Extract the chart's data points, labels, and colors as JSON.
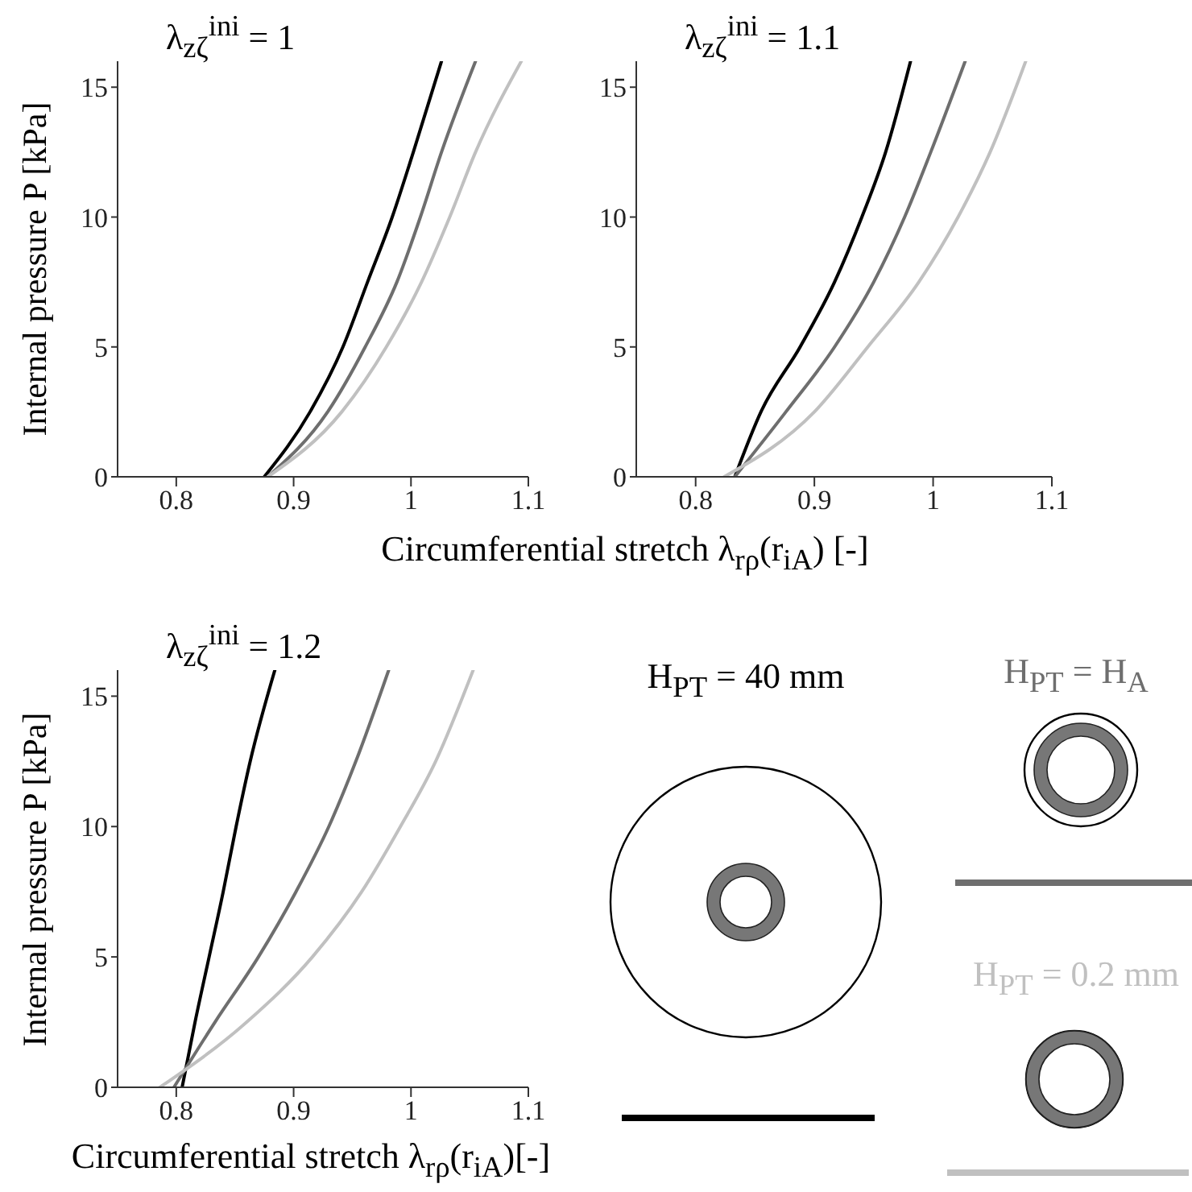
{
  "chart_data": [
    {
      "type": "line",
      "title": "λ$_{zζ}$$^{ini}$ = 1",
      "ylabel": "Internal pressure P [kPa]",
      "xlabel": "Circumferential   stretch λ$_{rρ}$(r$_{iA}$) [-]",
      "xlim": [
        0.75,
        1.1
      ],
      "ylim": [
        0,
        16
      ],
      "xticks": [
        0.8,
        0.9,
        1,
        1.1
      ],
      "yticks": [
        0,
        5,
        10,
        15
      ],
      "series": [
        {
          "color": "#000000",
          "x": [
            0.875,
            0.914,
            0.942,
            0.963,
            0.984,
            1.002,
            1.026
          ],
          "values": [
            0,
            2.5,
            5,
            7.5,
            10,
            12.5,
            16
          ]
        },
        {
          "color": "#6e6e6e",
          "x": [
            0.878,
            0.929,
            0.961,
            0.988,
            1.008,
            1.026,
            1.055
          ],
          "values": [
            0,
            2.5,
            5,
            7.5,
            10,
            12.5,
            16
          ]
        },
        {
          "color": "#c0c0c0",
          "x": [
            0.878,
            0.941,
            0.979,
            1.009,
            1.033,
            1.055,
            1.094
          ],
          "values": [
            0,
            2.5,
            5,
            7.5,
            10,
            12.5,
            16
          ]
        }
      ]
    },
    {
      "type": "line",
      "title": "λ$_{zζ}$$^{ini}$ = 1.1",
      "xlim": [
        0.75,
        1.1
      ],
      "ylim": [
        0,
        16
      ],
      "xticks": [
        0.8,
        0.9,
        1,
        1.1
      ],
      "yticks": [
        0,
        5,
        10,
        15
      ],
      "series": [
        {
          "color": "#000000",
          "x": [
            0.833,
            0.855,
            0.888,
            0.917,
            0.94,
            0.96,
            0.981
          ],
          "values": [
            0,
            2.5,
            5,
            7.5,
            10,
            12.5,
            16
          ]
        },
        {
          "color": "#6e6e6e",
          "x": [
            0.833,
            0.876,
            0.917,
            0.95,
            0.976,
            0.998,
            1.027
          ],
          "values": [
            0,
            2.5,
            5,
            7.5,
            10,
            12.5,
            16
          ]
        },
        {
          "color": "#c0c0c0",
          "x": [
            0.824,
            0.9,
            0.945,
            0.988,
            1.021,
            1.048,
            1.078
          ],
          "values": [
            0,
            2.5,
            5,
            7.5,
            10,
            12.5,
            16
          ]
        }
      ]
    },
    {
      "type": "line",
      "title": "λ$_{zζ}$$^{ini}$ = 1.2",
      "ylabel": "Internal pressure P [kPa]",
      "xlabel": "Circumferential stretch λ$_{rρ}$(r$_{iA}$)[-]",
      "xlim": [
        0.75,
        1.1
      ],
      "ylim": [
        0,
        16
      ],
      "xticks": [
        0.8,
        0.9,
        1,
        1.1
      ],
      "yticks": [
        0,
        5,
        10,
        15
      ],
      "legend": "right",
      "series": [
        {
          "name": "H$_{PT}$ = 40 mm",
          "color": "#000000",
          "x": [
            0.805,
            0.816,
            0.828,
            0.84,
            0.851,
            0.863,
            0.884
          ],
          "values": [
            0,
            2.5,
            5,
            7.5,
            10,
            12.5,
            16
          ]
        },
        {
          "name": "H$_{PT}$ = H$_{A}$",
          "color": "#6e6e6e",
          "x": [
            0.798,
            0.833,
            0.87,
            0.902,
            0.93,
            0.953,
            0.981
          ],
          "values": [
            0,
            2.5,
            5,
            7.5,
            10,
            12.5,
            16
          ]
        },
        {
          "name": "H$_{PT}$ = 0.2 mm",
          "color": "#c0c0c0",
          "x": [
            0.786,
            0.86,
            0.916,
            0.958,
            0.991,
            1.021,
            1.053
          ],
          "values": [
            0,
            2.5,
            5,
            7.5,
            10,
            12.5,
            16
          ]
        }
      ]
    }
  ]
}
